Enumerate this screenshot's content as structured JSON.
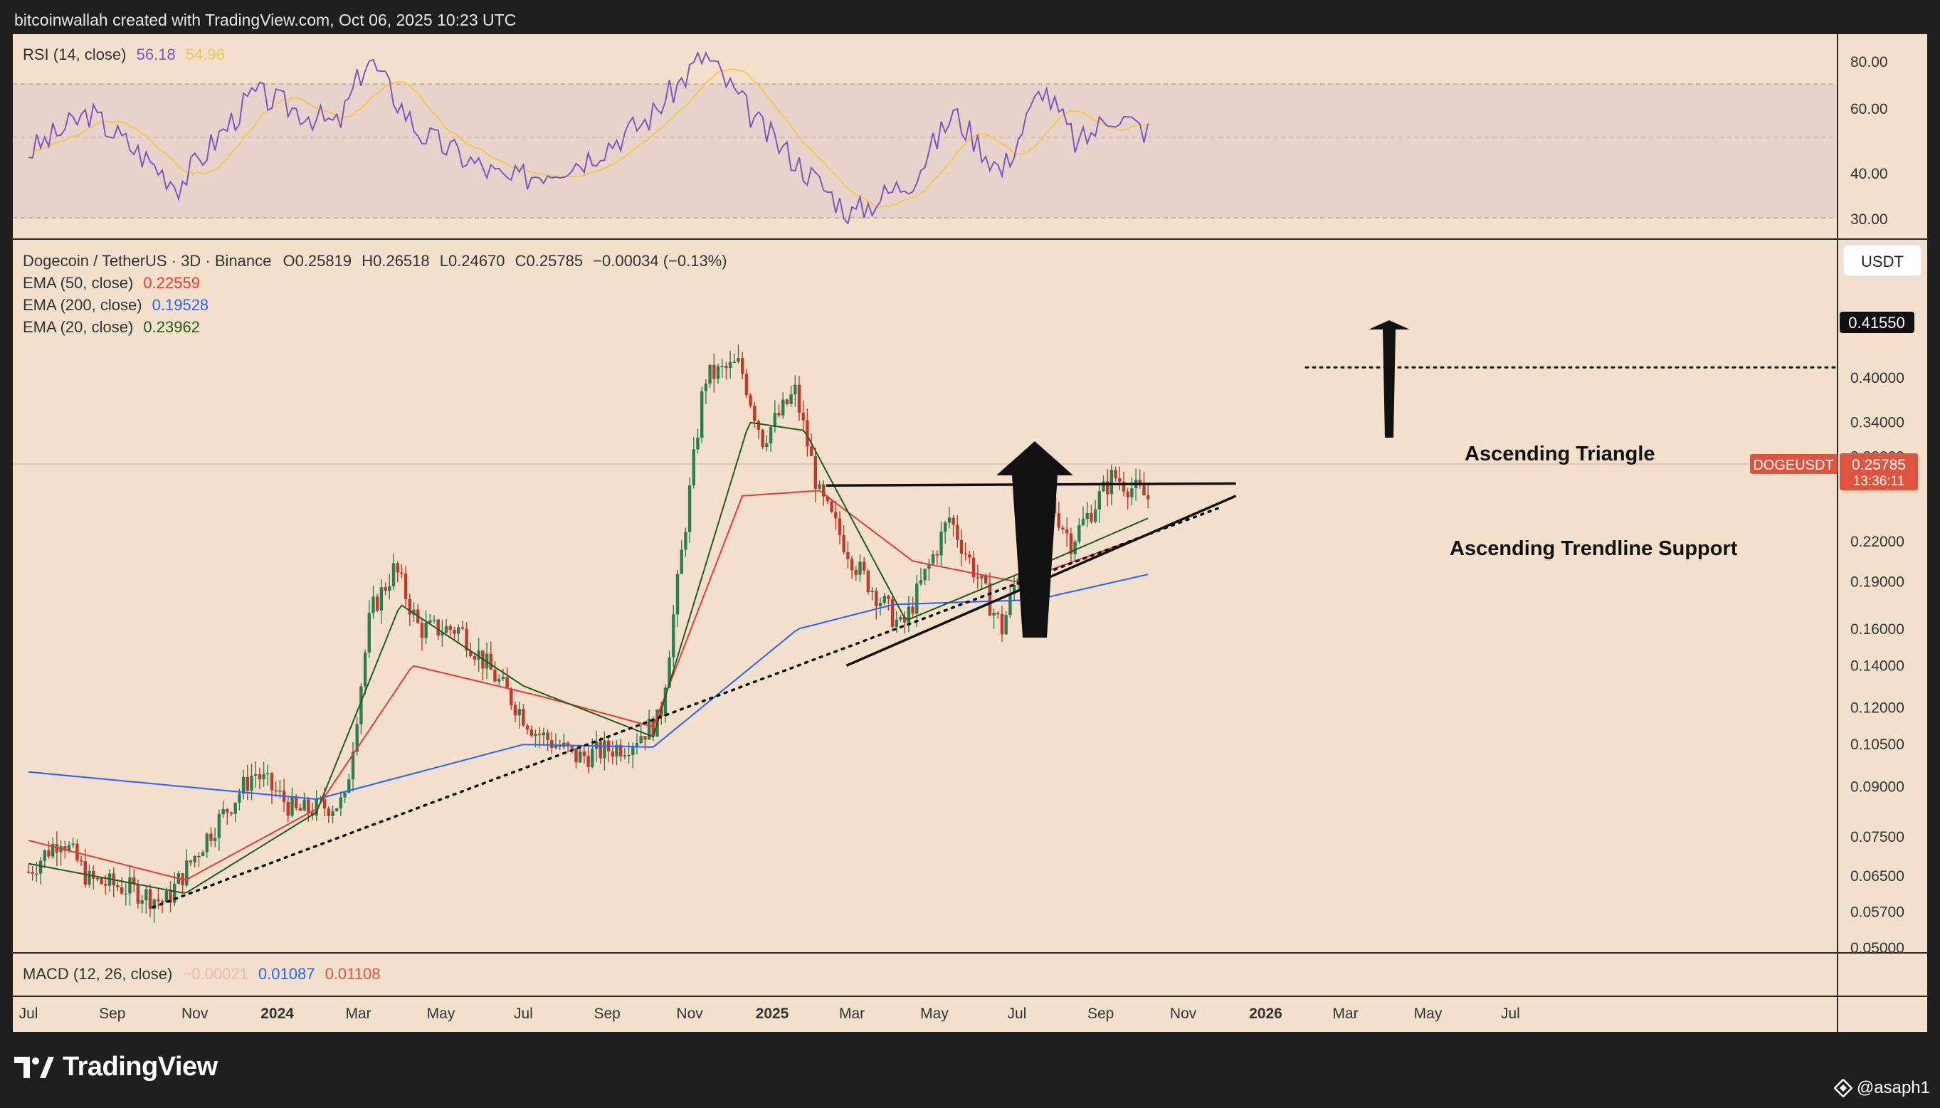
{
  "header": {
    "attribution": "bitcoinwallah created with TradingView.com, Oct 06, 2025 10:23 UTC"
  },
  "footer": {
    "brand": "TradingView",
    "credit": "@asaph1"
  },
  "colors": {
    "panel_bg": "#f2e0cd",
    "rsi_band": "#e3d0cc",
    "rsi": "#7e57c2",
    "rsi_ma": "#f2c94c",
    "up": "#2e7d4f",
    "down": "#c0392b",
    "ema50": "#e53935",
    "ema200": "#2962ff",
    "ema20": "#1b5e20"
  },
  "rsi": {
    "legend": {
      "name": "RSI (14, close)",
      "value": "56.18",
      "ma_value": "54.96"
    },
    "ticks": [
      "80.00",
      "60.00",
      "40.00",
      "30.00"
    ]
  },
  "price": {
    "legend": {
      "symbol": "Dogecoin / TetherUS · 3D · Binance",
      "o": "O0.25819",
      "h": "H0.26518",
      "l": "L0.24670",
      "c": "C0.25785",
      "chg": "−0.00034 (−0.13%)",
      "ema50": {
        "name": "EMA (50, close)",
        "value": "0.22559"
      },
      "ema200": {
        "name": "EMA (200, close)",
        "value": "0.19528"
      },
      "ema20": {
        "name": "EMA (20, close)",
        "value": "0.23962"
      }
    },
    "currency": "USDT",
    "target_label": "0.41550",
    "ticker": "DOGEUSDT",
    "last_price": "0.25785",
    "countdown": "13:36:11",
    "annotations": {
      "triangle": "Ascending Triangle",
      "support": "Ascending Trendline Support"
    }
  },
  "macd": {
    "name": "MACD (12, 26, close)",
    "hist": "−0.00021",
    "macd": "0.01087",
    "signal": "0.01108"
  },
  "time_axis": [
    "Jul",
    "Sep",
    "Nov",
    "2024",
    "Mar",
    "May",
    "Jul",
    "Sep",
    "Nov",
    "2025",
    "Mar",
    "May",
    "Jul",
    "Sep",
    "Nov",
    "2026",
    "Mar",
    "May",
    "Jul"
  ],
  "chart_data": {
    "type": "candlestick",
    "scale": "log",
    "symbol": "DOGEUSDT",
    "interval": "3D",
    "ylim": [
      0.05,
      0.43
    ],
    "y_ticks": [
      0.05,
      0.057,
      0.065,
      0.075,
      0.09,
      0.105,
      0.12,
      0.14,
      0.16,
      0.19,
      0.22,
      0.3,
      0.34,
      0.4
    ],
    "price_path": [
      [
        "2023-07-01",
        0.066
      ],
      [
        "2023-07-25",
        0.075
      ],
      [
        "2023-08-15",
        0.064
      ],
      [
        "2023-09-15",
        0.062
      ],
      [
        "2023-10-10",
        0.059
      ],
      [
        "2023-11-10",
        0.075
      ],
      [
        "2023-12-15",
        0.095
      ],
      [
        "2024-01-15",
        0.082
      ],
      [
        "2024-02-20",
        0.085
      ],
      [
        "2024-03-10",
        0.17
      ],
      [
        "2024-03-28",
        0.2
      ],
      [
        "2024-04-15",
        0.16
      ],
      [
        "2024-05-15",
        0.16
      ],
      [
        "2024-06-15",
        0.13
      ],
      [
        "2024-07-10",
        0.11
      ],
      [
        "2024-08-10",
        0.1
      ],
      [
        "2024-09-15",
        0.105
      ],
      [
        "2024-10-10",
        0.115
      ],
      [
        "2024-11-12",
        0.4
      ],
      [
        "2024-12-08",
        0.42
      ],
      [
        "2024-12-25",
        0.32
      ],
      [
        "2025-01-18",
        0.38
      ],
      [
        "2025-02-05",
        0.26
      ],
      [
        "2025-03-05",
        0.2
      ],
      [
        "2025-04-07",
        0.16
      ],
      [
        "2025-05-12",
        0.24
      ],
      [
        "2025-06-20",
        0.16
      ],
      [
        "2025-07-20",
        0.27
      ],
      [
        "2025-08-10",
        0.22
      ],
      [
        "2025-09-10",
        0.28
      ],
      [
        "2025-10-06",
        0.25785
      ]
    ],
    "ema50_path": [
      [
        "2023-07-01",
        0.074
      ],
      [
        "2023-10-25",
        0.064
      ],
      [
        "2024-01-30",
        0.083
      ],
      [
        "2024-04-10",
        0.14
      ],
      [
        "2024-07-15",
        0.125
      ],
      [
        "2024-10-05",
        0.112
      ],
      [
        "2024-12-10",
        0.26
      ],
      [
        "2025-02-05",
        0.265
      ],
      [
        "2025-04-15",
        0.205
      ],
      [
        "2025-07-01",
        0.19
      ],
      [
        "2025-10-06",
        0.22559
      ]
    ],
    "ema200_path": [
      [
        "2023-07-01",
        0.095
      ],
      [
        "2024-01-30",
        0.086
      ],
      [
        "2024-07-01",
        0.105
      ],
      [
        "2024-10-05",
        0.104
      ],
      [
        "2025-01-20",
        0.16
      ],
      [
        "2025-04-01",
        0.175
      ],
      [
        "2025-07-15",
        0.178
      ],
      [
        "2025-10-06",
        0.19528
      ]
    ],
    "ema20_path": [
      [
        "2023-07-01",
        0.068
      ],
      [
        "2023-10-25",
        0.061
      ],
      [
        "2024-01-30",
        0.082
      ],
      [
        "2024-04-01",
        0.175
      ],
      [
        "2024-07-01",
        0.13
      ],
      [
        "2024-10-05",
        0.108
      ],
      [
        "2024-12-15",
        0.34
      ],
      [
        "2025-01-25",
        0.33
      ],
      [
        "2025-04-10",
        0.165
      ],
      [
        "2025-07-25",
        0.205
      ],
      [
        "2025-10-06",
        0.23962
      ]
    ],
    "trendlines": [
      {
        "name": "Ascending Trendline Support",
        "style": "dotted",
        "from": [
          "2023-10-01",
          0.058
        ],
        "to": [
          "2025-11-30",
          0.25
        ]
      },
      {
        "name": "Ascending Triangle lower",
        "style": "solid",
        "from": [
          "2025-02-25",
          0.14
        ],
        "to": [
          "2025-12-10",
          0.26
        ]
      },
      {
        "name": "Ascending Triangle upper",
        "style": "solid",
        "from": [
          "2025-02-10",
          0.27
        ],
        "to": [
          "2025-12-10",
          0.272
        ]
      },
      {
        "name": "target",
        "style": "dotted",
        "from": [
          "2025-08-10",
          0.4155
        ],
        "to": [
          "2026-07-31",
          0.4155
        ]
      }
    ],
    "target": 0.4155,
    "rsi_path": [
      [
        "2023-07-01",
        50
      ],
      [
        "2023-08-15",
        62
      ],
      [
        "2023-10-20",
        40
      ],
      [
        "2023-12-15",
        68
      ],
      [
        "2024-02-15",
        58
      ],
      [
        "2024-03-08",
        79
      ],
      [
        "2024-04-15",
        56
      ],
      [
        "2024-06-20",
        41
      ],
      [
        "2024-08-15",
        48
      ],
      [
        "2024-10-01",
        60
      ],
      [
        "2024-11-12",
        80
      ],
      [
        "2024-12-25",
        57
      ],
      [
        "2025-03-01",
        31
      ],
      [
        "2025-04-15",
        42
      ],
      [
        "2025-05-15",
        62
      ],
      [
        "2025-06-20",
        44
      ],
      [
        "2025-07-20",
        70
      ],
      [
        "2025-08-15",
        52
      ],
      [
        "2025-09-10",
        62
      ],
      [
        "2025-10-06",
        56.18
      ]
    ],
    "rsi_levels": {
      "upper": 70,
      "middle": 50,
      "lower": 30
    },
    "x_axis_labels": [
      "Jul",
      "Sep",
      "Nov",
      "2024",
      "Mar",
      "May",
      "Jul",
      "Sep",
      "Nov",
      "2025",
      "Mar",
      "May",
      "Jul",
      "Sep",
      "Nov",
      "2026",
      "Mar",
      "May",
      "Jul"
    ]
  }
}
